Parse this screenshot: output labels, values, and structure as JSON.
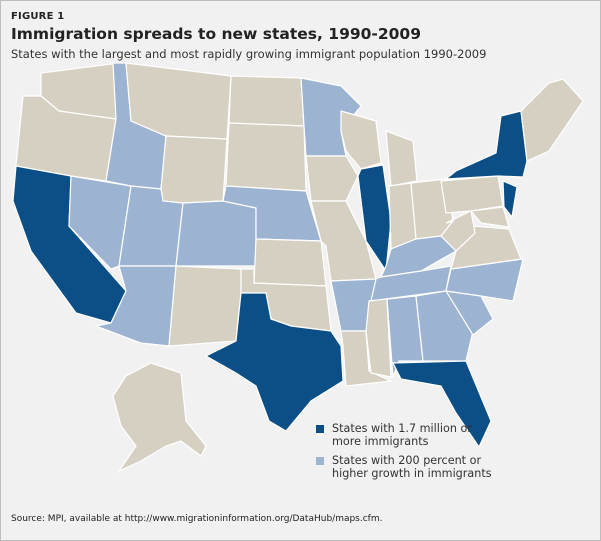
{
  "header": {
    "label": "FIGURE 1",
    "title": "Immigration spreads to new states, 1990-2009",
    "subtitle": "States with the largest and most rapidly growing immigrant population 1990-2009"
  },
  "colors": {
    "large": "#0b4f86",
    "growth": "#9db3d2",
    "other": "#d6d0c3"
  },
  "legend": [
    {
      "key": "large",
      "text": "States with 1.7 million or more immigrants"
    },
    {
      "key": "growth",
      "text": "States with 200 percent or higher growth in immigrants"
    }
  ],
  "states": {
    "WA": "other",
    "OR": "other",
    "CA": "large",
    "NV": "growth",
    "ID": "growth",
    "MT": "other",
    "WY": "other",
    "UT": "growth",
    "CO": "growth",
    "AZ": "growth",
    "NM": "other",
    "ND": "other",
    "SD": "other",
    "NE": "growth",
    "KS": "other",
    "OK": "other",
    "TX": "large",
    "MN": "growth",
    "IA": "other",
    "MO": "other",
    "AR": "growth",
    "LA": "other",
    "WI": "other",
    "IL": "large",
    "MI": "other",
    "IN": "other",
    "OH": "other",
    "KY": "growth",
    "TN": "growth",
    "MS": "other",
    "AL": "growth",
    "GA": "growth",
    "FL": "large",
    "SC": "growth",
    "NC": "growth",
    "VA": "other",
    "WV": "other",
    "PA": "other",
    "NY": "large",
    "NJ": "large",
    "MD": "other",
    "NE_REGION": "other",
    "AK": "other"
  },
  "source": "Source: MPI, available at http://www.migrationinformation.org/DataHub/maps.cfm."
}
